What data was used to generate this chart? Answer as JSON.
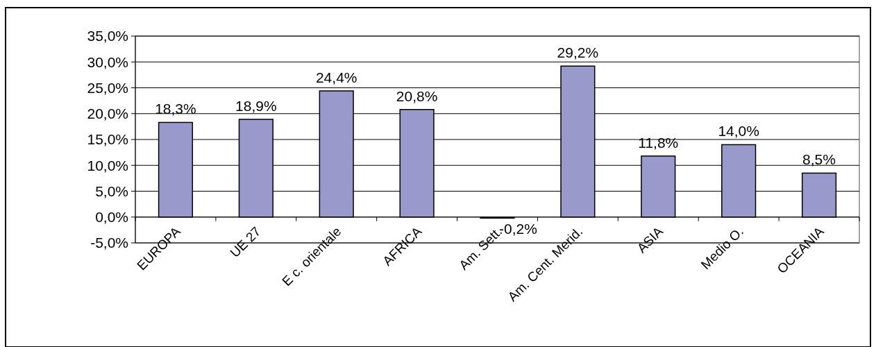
{
  "chart_data": {
    "type": "bar",
    "categories": [
      "EUROPA",
      "UE 27",
      "E c. orientale",
      "AFRICA",
      "Am. Sett.",
      "Am. Cent. Merid.",
      "ASIA",
      "Medio O.",
      "OCEANIA"
    ],
    "values": [
      18.3,
      18.9,
      24.4,
      20.8,
      -0.2,
      29.2,
      11.8,
      14.0,
      8.5
    ],
    "value_labels": [
      "18,3%",
      "18,9%",
      "24,4%",
      "20,8%",
      "-0,2%",
      "29,2%",
      "11,8%",
      "14,0%",
      "8,5%"
    ],
    "color": "#9999cc",
    "ylim": [
      -5,
      35
    ],
    "yticks": [
      {
        "value": -5,
        "label": "-5,0%"
      },
      {
        "value": 0,
        "label": "0,0%"
      },
      {
        "value": 5,
        "label": "5,0%"
      },
      {
        "value": 10,
        "label": "10,0%"
      },
      {
        "value": 15,
        "label": "15,0%"
      },
      {
        "value": 20,
        "label": "20,0%"
      },
      {
        "value": 25,
        "label": "25,0%"
      },
      {
        "value": 30,
        "label": "30,0%"
      },
      {
        "value": 35,
        "label": "35,0%"
      }
    ],
    "grid": "y"
  }
}
